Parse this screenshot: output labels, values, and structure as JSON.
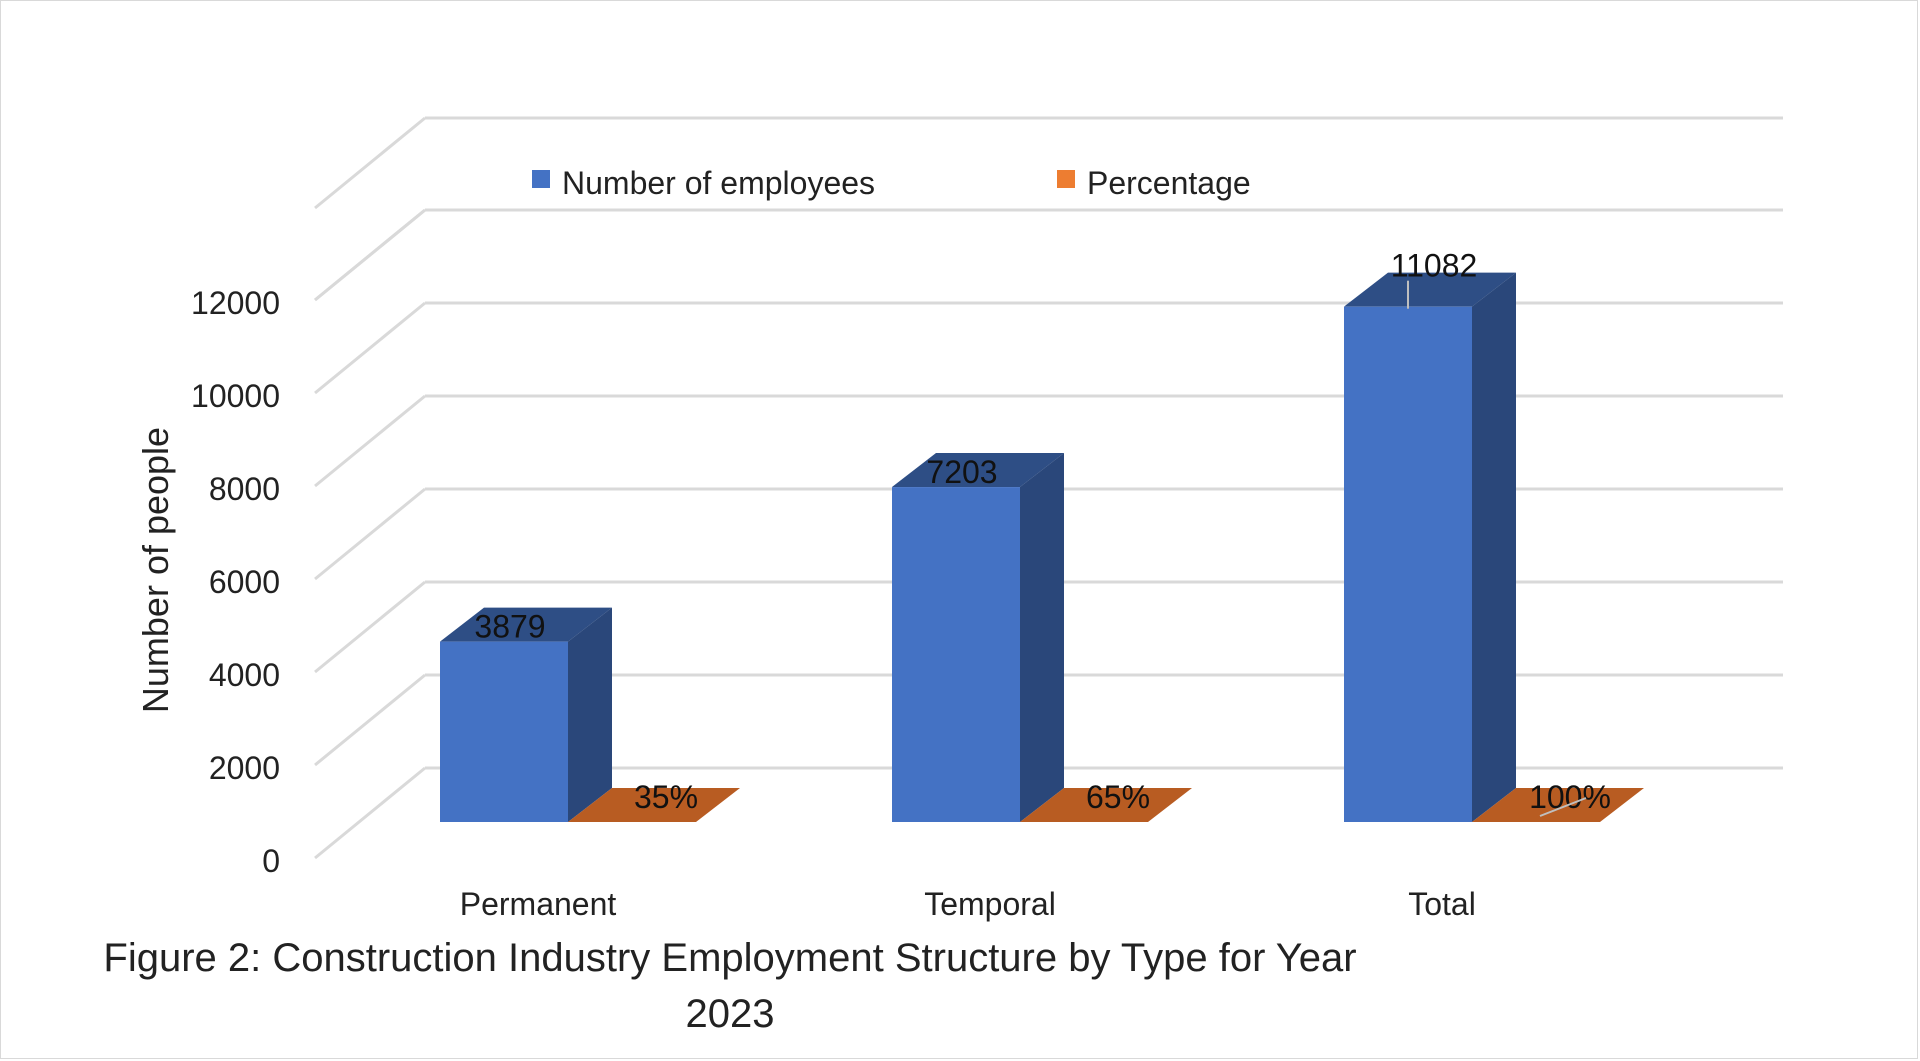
{
  "chart_data": {
    "type": "bar",
    "style": "3d-clustered-column",
    "categories": [
      "Permanent",
      "Temporal",
      "Total"
    ],
    "series": [
      {
        "name": "Number of employees",
        "values": [
          3879,
          7203,
          11082
        ],
        "color": "#4472C4",
        "labels": [
          "3879",
          "7203",
          "11082"
        ]
      },
      {
        "name": "Percentage",
        "values": [
          0.35,
          0.65,
          1.0
        ],
        "color": "#ED7D31",
        "labels": [
          "35%",
          "65%",
          "100%"
        ]
      }
    ],
    "ylabel": "Number of people",
    "ylim": [
      0,
      12000
    ],
    "yticks": [
      0,
      2000,
      4000,
      6000,
      8000,
      10000,
      12000
    ],
    "grid": true,
    "legend_position": "top"
  },
  "caption": {
    "line1": "Figure 2: Construction Industry Employment Structure by Type for Year",
    "line2": "2023"
  }
}
